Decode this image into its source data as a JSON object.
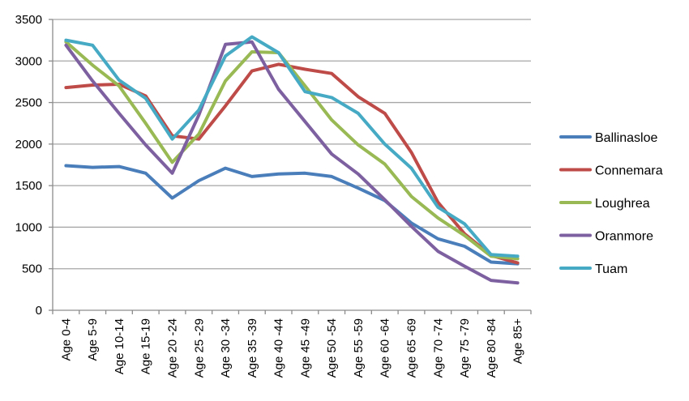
{
  "chart_data": {
    "type": "line",
    "title": "",
    "xlabel": "",
    "ylabel": "",
    "ylim": [
      0,
      3500
    ],
    "yticks": [
      0,
      500,
      1000,
      1500,
      2000,
      2500,
      3000,
      3500
    ],
    "grid": true,
    "legend_position": "right",
    "categories": [
      "Age 0-4",
      "Age 5-9",
      "Age 10-14",
      "Age 15-19",
      "Age 20 -24",
      "Age 25 -29",
      "Age 30 -34",
      "Age 35 -39",
      "Age 40 -44",
      "Age 45 -49",
      "Age 50 -54",
      "Age 55 -59",
      "Age 60 -64",
      "Age 65 -69",
      "Age 70 -74",
      "Age 75 -79",
      "Age 80 -84",
      "Age 85+"
    ],
    "series": [
      {
        "name": "Ballinasloe",
        "color": "#4a7ebb",
        "values": [
          1740,
          1720,
          1730,
          1650,
          1350,
          1560,
          1710,
          1610,
          1640,
          1650,
          1610,
          1470,
          1320,
          1050,
          860,
          770,
          580,
          560
        ]
      },
      {
        "name": "Connemara",
        "color": "#be4b48",
        "values": [
          2680,
          2710,
          2720,
          2580,
          2100,
          2060,
          2460,
          2880,
          2960,
          2900,
          2850,
          2570,
          2370,
          1900,
          1300,
          920,
          660,
          570
        ]
      },
      {
        "name": "Loughrea",
        "color": "#98b954",
        "values": [
          3230,
          2950,
          2700,
          2250,
          1780,
          2120,
          2760,
          3110,
          3100,
          2700,
          2290,
          1990,
          1760,
          1370,
          1110,
          900,
          650,
          620
        ]
      },
      {
        "name": "Oranmore",
        "color": "#7d60a0",
        "values": [
          3190,
          2760,
          2370,
          1990,
          1650,
          2350,
          3200,
          3230,
          2660,
          2270,
          1880,
          1640,
          1330,
          1010,
          710,
          530,
          360,
          330
        ]
      },
      {
        "name": "Tuam",
        "color": "#46aac5",
        "values": [
          3250,
          3190,
          2770,
          2550,
          2060,
          2410,
          3060,
          3290,
          3100,
          2630,
          2560,
          2370,
          2000,
          1710,
          1240,
          1040,
          670,
          650
        ]
      }
    ]
  }
}
